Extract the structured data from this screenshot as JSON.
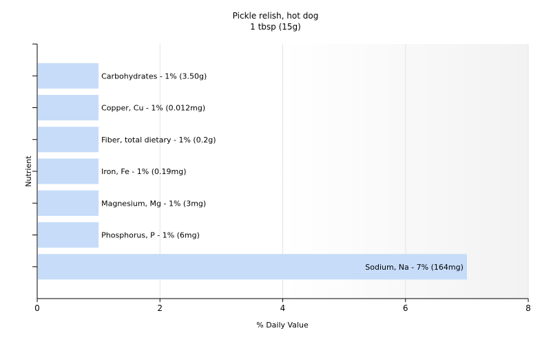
{
  "chart_data": {
    "type": "bar",
    "orientation": "horizontal",
    "title": "Pickle relish, hot dog",
    "subtitle": "1 tbsp (15g)",
    "xlabel": "% Daily Value",
    "ylabel": "Nutrient",
    "xlim": [
      0,
      8
    ],
    "xticks": [
      "0",
      "2",
      "4",
      "6",
      "8"
    ],
    "grid": true,
    "legend": "none",
    "bar_color": "#c6dcf9",
    "categories": [
      "Carbohydrates",
      "Copper, Cu",
      "Fiber, total dietary",
      "Iron, Fe",
      "Magnesium, Mg",
      "Phosphorus, P",
      "Sodium, Na"
    ],
    "values": [
      1,
      1,
      1,
      1,
      1,
      1,
      7
    ],
    "labels": [
      "Carbohydrates - 1% (3.50g)",
      "Copper, Cu - 1% (0.012mg)",
      "Fiber, total dietary - 1% (0.2g)",
      "Iron, Fe - 1% (0.19mg)",
      "Magnesium, Mg - 1% (3mg)",
      "Phosphorus, P - 1% (6mg)",
      "Sodium, Na - 7% (164mg)"
    ]
  }
}
